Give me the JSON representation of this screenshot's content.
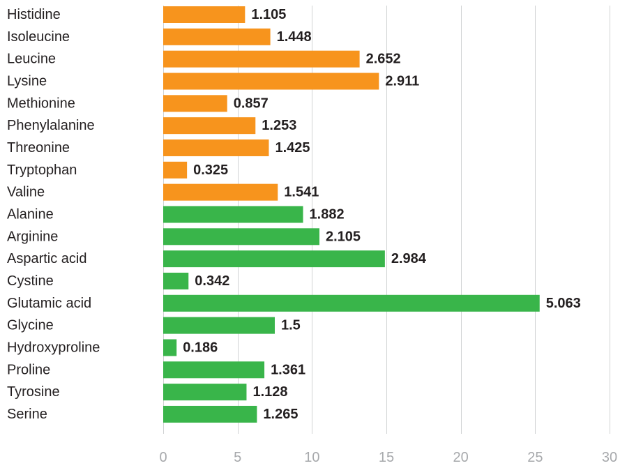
{
  "chart_data": {
    "type": "bar",
    "orientation": "horizontal",
    "categories": [
      "Histidine",
      "Isoleucine",
      "Leucine",
      "Lysine",
      "Methionine",
      "Phenylalanine",
      "Threonine",
      "Tryptophan",
      "Valine",
      "Alanine",
      "Arginine",
      "Aspartic acid",
      "Cystine",
      "Glutamic acid",
      "Glycine",
      "Hydroxyproline",
      "Proline",
      "Tyrosine",
      "Serine"
    ],
    "values": [
      5.5,
      7.2,
      13.2,
      14.5,
      4.3,
      6.2,
      7.1,
      1.6,
      7.7,
      9.4,
      10.5,
      14.9,
      1.7,
      25.3,
      7.5,
      0.9,
      6.8,
      5.6,
      6.3
    ],
    "value_labels": [
      "1.105",
      "1.448",
      "2.652",
      "2.911",
      "0.857",
      "1.253",
      "1.425",
      "0.325",
      "1.541",
      "1.882",
      "2.105",
      "2.984",
      "0.342",
      "5.063",
      "1.5",
      "0.186",
      "1.361",
      "1.128",
      "1.265"
    ],
    "bar_colors": [
      "#f7941d",
      "#f7941d",
      "#f7941d",
      "#f7941d",
      "#f7941d",
      "#f7941d",
      "#f7941d",
      "#f7941d",
      "#f7941d",
      "#39b54a",
      "#39b54a",
      "#39b54a",
      "#39b54a",
      "#39b54a",
      "#39b54a",
      "#39b54a",
      "#39b54a",
      "#39b54a",
      "#39b54a"
    ],
    "xlim": [
      0,
      30
    ],
    "xticks": [
      0,
      5,
      10,
      15,
      20,
      25,
      30
    ],
    "xtick_labels": [
      "0",
      "5",
      "10",
      "15",
      "20",
      "25",
      "30"
    ],
    "grid": "vertical",
    "legend": "none",
    "title": "",
    "xlabel": "",
    "ylabel": ""
  }
}
